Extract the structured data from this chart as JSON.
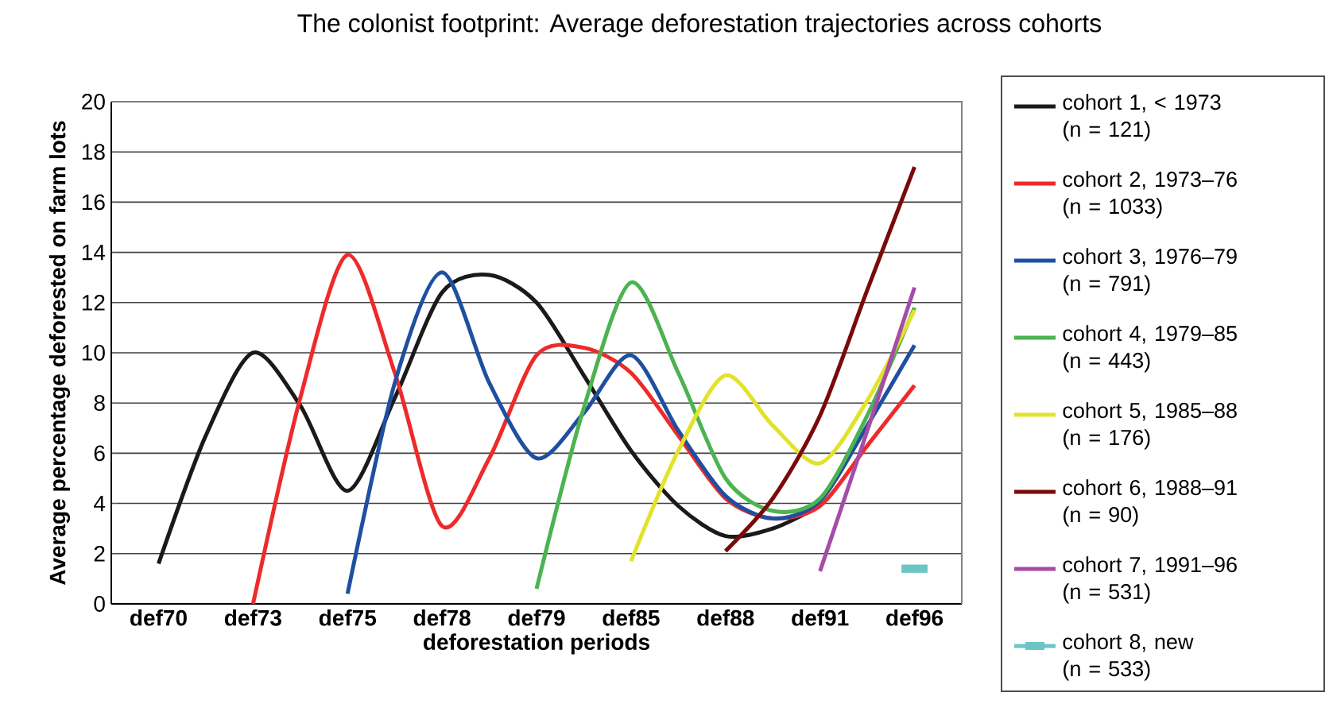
{
  "chart_data": {
    "type": "line",
    "title": "The colonist footprint: Average deforestation trajectories across cohorts",
    "xlabel": "deforestation periods",
    "ylabel": "Average percentage deforested on farm lots",
    "categories": [
      "def70",
      null,
      "def73",
      null,
      "def75",
      null,
      "def78",
      null,
      "def79",
      null,
      "def85",
      null,
      "def88",
      null,
      "def91",
      null,
      "def96"
    ],
    "ylim": [
      0,
      20
    ],
    "yticks": [
      0,
      2,
      4,
      6,
      8,
      10,
      12,
      14,
      16,
      18,
      20
    ],
    "grid": "y",
    "legend": "right",
    "series": [
      {
        "name": "cohort 1, < 1973 (n = 121)",
        "color": "#1a1a1a",
        "values": [
          1.6,
          6.7,
          10.0,
          7.9,
          4.5,
          8.2,
          12.4,
          13.1,
          12.0,
          9.1,
          6.1,
          3.9,
          2.7,
          3.0,
          3.9,
          null,
          null
        ]
      },
      {
        "name": "cohort 2, 1973–76 (n = 1033)",
        "color": "#ee2a2a",
        "values": [
          null,
          null,
          0.0,
          8.2,
          13.9,
          9.2,
          3.1,
          5.8,
          9.9,
          10.2,
          9.2,
          6.7,
          4.2,
          3.4,
          3.9,
          6.3,
          8.7
        ]
      },
      {
        "name": "cohort 3, 1976–79 (n = 791)",
        "color": "#1f4fa0",
        "values": [
          null,
          null,
          null,
          null,
          0.4,
          8.8,
          13.2,
          8.8,
          5.8,
          7.6,
          9.9,
          6.9,
          4.3,
          3.4,
          4.1,
          7.1,
          10.3
        ]
      },
      {
        "name": "cohort 4, 1979–85 (n = 443)",
        "color": "#4bb34f",
        "values": [
          null,
          null,
          null,
          null,
          null,
          null,
          null,
          null,
          0.6,
          7.8,
          12.8,
          9.2,
          5.0,
          3.7,
          4.2,
          7.5,
          11.8
        ]
      },
      {
        "name": "cohort 5, 1985–88 (n = 176)",
        "color": "#e2e22a",
        "values": [
          null,
          null,
          null,
          null,
          null,
          null,
          null,
          null,
          null,
          null,
          1.7,
          6.1,
          9.1,
          7.1,
          5.6,
          8.1,
          11.7
        ]
      },
      {
        "name": "cohort 6, 1988–91 (n = 90)",
        "color": "#7a0a0a",
        "values": [
          null,
          null,
          null,
          null,
          null,
          null,
          null,
          null,
          null,
          null,
          null,
          null,
          2.1,
          4.2,
          7.5,
          12.5,
          17.4
        ]
      },
      {
        "name": "cohort 7, 1991–96 (n = 531)",
        "color": "#a64ca6",
        "values": [
          null,
          null,
          null,
          null,
          null,
          null,
          null,
          null,
          null,
          null,
          null,
          null,
          null,
          null,
          1.3,
          6.9,
          12.6
        ]
      },
      {
        "name": "cohort 8, new (n = 533)",
        "color": "#6cc5c5",
        "marker": "square",
        "values": [
          null,
          null,
          null,
          null,
          null,
          null,
          null,
          null,
          null,
          null,
          null,
          null,
          null,
          null,
          null,
          null,
          1.4
        ]
      }
    ]
  }
}
